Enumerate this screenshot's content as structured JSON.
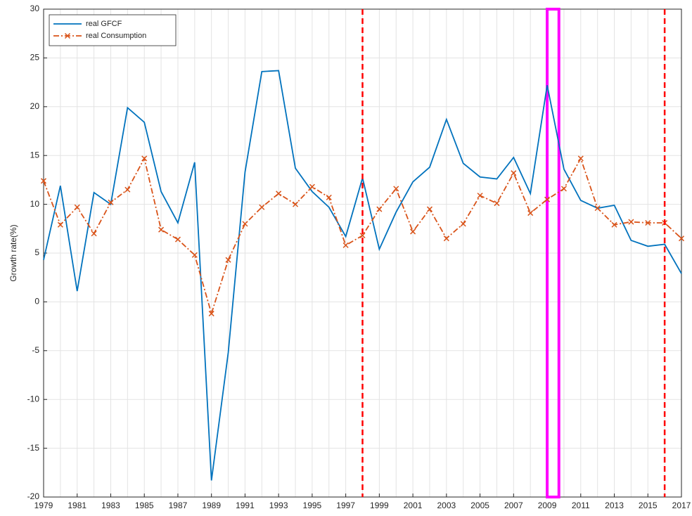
{
  "chart_data": {
    "type": "line",
    "ylabel": "Growth rate(%)",
    "x": [
      1979,
      1980,
      1981,
      1982,
      1983,
      1984,
      1985,
      1986,
      1987,
      1988,
      1989,
      1990,
      1991,
      1992,
      1993,
      1994,
      1995,
      1996,
      1997,
      1998,
      1999,
      2000,
      2001,
      2002,
      2003,
      2004,
      2005,
      2006,
      2007,
      2008,
      2009,
      2010,
      2011,
      2012,
      2013,
      2014,
      2015,
      2016,
      2017
    ],
    "series": [
      {
        "name": "real GFCF",
        "color": "#0072bd",
        "style": "solid",
        "values": [
          4.3,
          11.9,
          1.1,
          11.2,
          10.0,
          19.9,
          18.4,
          11.3,
          8.1,
          14.3,
          -18.3,
          -5.2,
          13.3,
          23.6,
          23.7,
          13.7,
          11.3,
          9.7,
          6.7,
          12.7,
          5.4,
          9.2,
          12.3,
          13.8,
          18.7,
          14.2,
          12.8,
          12.6,
          14.8,
          11.1,
          22.2,
          13.6,
          10.4,
          9.6,
          9.9,
          6.3,
          5.7,
          5.9,
          2.9
        ]
      },
      {
        "name": "real Consumption",
        "color": "#d95319",
        "style": "dashdot",
        "marker": "x",
        "values": [
          12.4,
          7.9,
          9.7,
          7.0,
          10.2,
          11.5,
          14.7,
          7.4,
          6.4,
          4.8,
          -1.2,
          4.3,
          8.0,
          9.7,
          11.1,
          10.0,
          11.8,
          10.7,
          5.8,
          6.8,
          9.5,
          11.6,
          7.2,
          9.5,
          6.5,
          8.0,
          10.9,
          10.1,
          13.2,
          9.1,
          10.5,
          11.6,
          14.7,
          9.6,
          7.9,
          8.2,
          8.1,
          8.1,
          6.5
        ]
      }
    ],
    "xlim": [
      1979,
      2017
    ],
    "xticks": [
      1979,
      1981,
      1983,
      1985,
      1987,
      1989,
      1991,
      1993,
      1995,
      1997,
      1999,
      2001,
      2003,
      2005,
      2007,
      2009,
      2011,
      2013,
      2015,
      2017
    ],
    "ylim": [
      -20,
      30
    ],
    "yticks": [
      -20,
      -15,
      -10,
      -5,
      0,
      5,
      10,
      15,
      20,
      25,
      30
    ],
    "grid": true,
    "legend": "top-left",
    "vlines": {
      "color": "#ff0000",
      "x": [
        1998,
        2016
      ]
    },
    "highlight": {
      "color": "#ff00ff",
      "x": [
        2009,
        2009.7
      ]
    }
  }
}
